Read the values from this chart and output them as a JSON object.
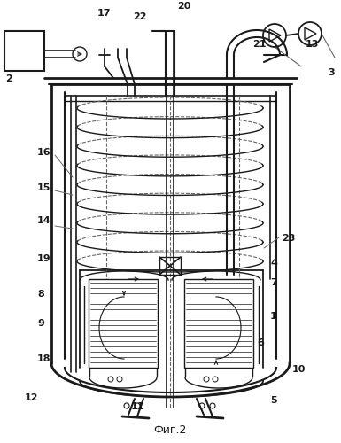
{
  "title": "Фиг.2",
  "bg_color": "#ffffff",
  "line_color": "#1a1a1a",
  "dashed_color": "#666666",
  "gray_color": "#aaaaaa"
}
